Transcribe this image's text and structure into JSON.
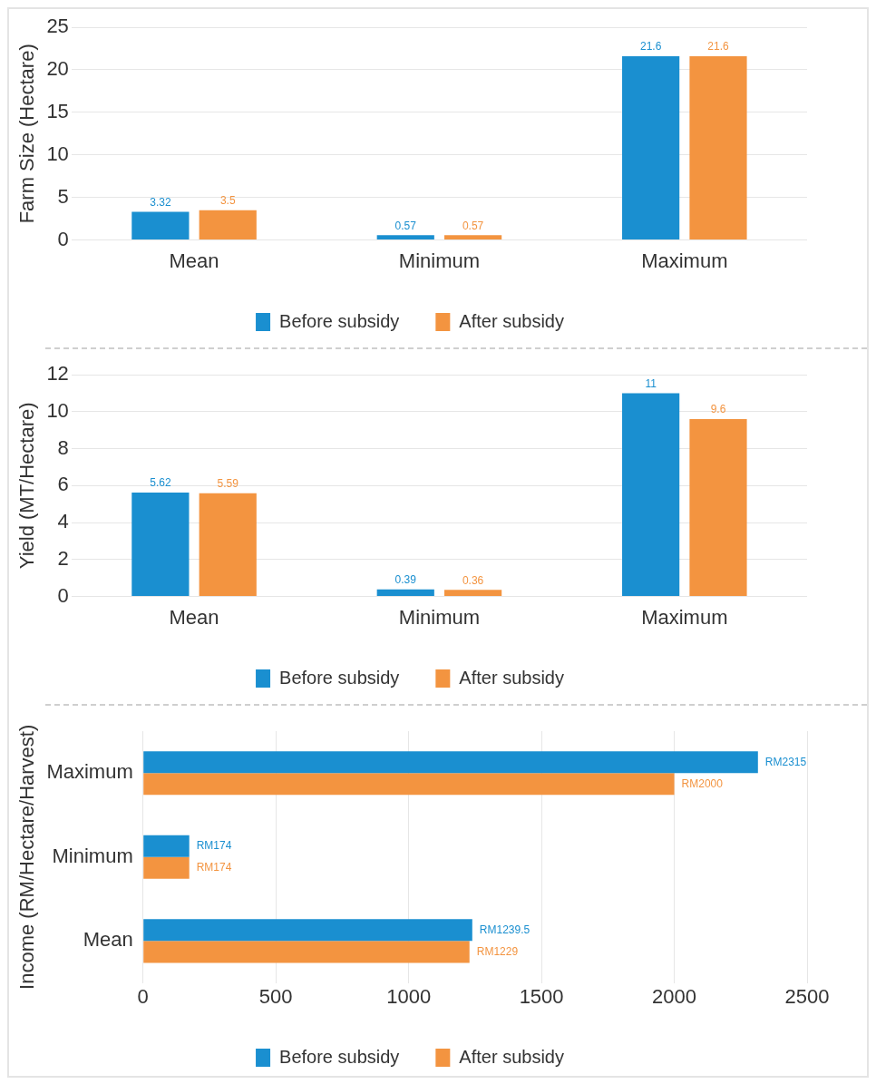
{
  "chart_data": [
    {
      "type": "bar",
      "ylabel": "Farm Size (Hectare)",
      "categories": [
        "Mean",
        "Minimum",
        "Maximum"
      ],
      "series": [
        {
          "name": "Before subsidy",
          "color": "#1a8fd0",
          "values": [
            3.32,
            0.57,
            21.6
          ]
        },
        {
          "name": "After subsidy",
          "color": "#f39440",
          "values": [
            3.5,
            0.57,
            21.6
          ]
        }
      ],
      "ylim": [
        0,
        25
      ],
      "yticks": [
        0,
        5,
        10,
        15,
        20,
        25
      ],
      "grid": "y",
      "legend": "bottom",
      "data_labels": true
    },
    {
      "type": "bar",
      "ylabel": "Yield (MT/Hectare)",
      "categories": [
        "Mean",
        "Minimum",
        "Maximum"
      ],
      "series": [
        {
          "name": "Before subsidy",
          "color": "#1a8fd0",
          "values": [
            5.62,
            0.39,
            11
          ]
        },
        {
          "name": "After subsidy",
          "color": "#f39440",
          "values": [
            5.59,
            0.36,
            9.6
          ]
        }
      ],
      "ylim": [
        0,
        12
      ],
      "yticks": [
        0,
        2,
        4,
        6,
        8,
        10,
        12
      ],
      "grid": "y",
      "legend": "bottom",
      "data_labels": true
    },
    {
      "type": "bar",
      "orientation": "horizontal",
      "ylabel": "Income (RM/Hectare/Harvest)",
      "categories": [
        "Maximum",
        "Minimum",
        "Mean"
      ],
      "series": [
        {
          "name": "Before subsidy",
          "color": "#1a8fd0",
          "values": [
            2315,
            174,
            1239.5
          ],
          "value_labels": [
            "RM2315",
            "RM174",
            "RM1239.5"
          ]
        },
        {
          "name": "After subsidy",
          "color": "#f39440",
          "values": [
            2000,
            174,
            1229
          ],
          "value_labels": [
            "RM2000",
            "RM174",
            "RM1229"
          ]
        }
      ],
      "xlim": [
        0,
        2500
      ],
      "xticks": [
        0,
        500,
        1000,
        1500,
        2000,
        2500
      ],
      "grid": "x",
      "legend": "bottom"
    }
  ]
}
